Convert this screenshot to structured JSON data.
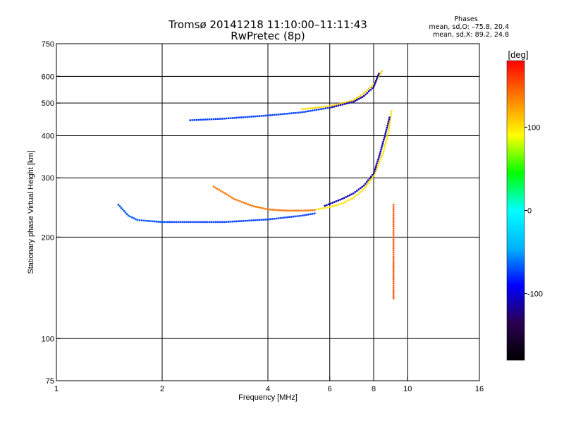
{
  "title_line1": "Tromsø 20141218 11:10:00–11:11:43",
  "title_line2": "RwPretec (8p)",
  "phases": {
    "heading": "Phases",
    "line_o": "mean, sd,O: –75.8, 20.4",
    "line_x": "mean, sd,X:  89.2, 24.8"
  },
  "chart_data": {
    "type": "scatter",
    "title": "Tromsø 20141218 11:10:00–11:11:43",
    "subtitle": "RwPretec (8p)",
    "xlabel": "Frequency [MHz]",
    "ylabel": "Stationary phase Virtual Height [km]",
    "xscale": "log",
    "yscale": "log",
    "xlim": [
      1,
      16
    ],
    "ylim": [
      75,
      750
    ],
    "xticks": [
      1,
      2,
      4,
      6,
      8,
      10,
      16
    ],
    "yticks": [
      75,
      100,
      200,
      300,
      400,
      500,
      600,
      750
    ],
    "xgrid": [
      2,
      4,
      6,
      8,
      10
    ],
    "ygrid": [
      100,
      200,
      300,
      400,
      500,
      600
    ],
    "colorbar": {
      "label": "[deg]",
      "range": [
        -180,
        180
      ],
      "ticks": [
        100,
        0,
        -100
      ],
      "colors": [
        "#000000",
        "#2a0050",
        "#0000ff",
        "#00b4ff",
        "#00ffff",
        "#00ff00",
        "#ffff00",
        "#ff8000",
        "#ff0000"
      ]
    },
    "traces": [
      {
        "x": [
          1.5,
          1.6,
          1.7,
          1.8,
          1.9,
          2.0,
          2.1
        ],
        "y": [
          250,
          232,
          225,
          224,
          223,
          222,
          222
        ],
        "phase": -70
      },
      {
        "x": [
          2.1,
          3.0,
          4.0,
          5.0,
          5.5
        ],
        "y": [
          222,
          222,
          226,
          232,
          236
        ],
        "phase": -75
      },
      {
        "x": [
          2.8,
          3.2,
          3.6,
          4.0,
          4.5,
          5.0,
          5.5
        ],
        "y": [
          283,
          260,
          248,
          242,
          240,
          240,
          241
        ],
        "phase": 140
      },
      {
        "x": [
          5.5,
          6.0,
          6.5,
          7.0,
          7.5,
          8.0,
          8.5,
          8.8,
          9.0
        ],
        "y": [
          242,
          246,
          252,
          262,
          278,
          305,
          355,
          410,
          480
        ],
        "phase": 100
      },
      {
        "x": [
          5.8,
          6.5,
          7.0,
          7.5,
          8.0,
          8.3,
          8.6,
          8.9
        ],
        "y": [
          248,
          260,
          270,
          285,
          310,
          350,
          400,
          460
        ],
        "phase": -110
      },
      {
        "x": [
          2.4,
          3.0,
          4.0,
          5.0,
          5.5,
          6.0
        ],
        "y": [
          445,
          450,
          460,
          470,
          478,
          485
        ],
        "phase": -75
      },
      {
        "x": [
          5.0,
          6.0,
          7.0,
          7.5,
          8.0,
          8.5
        ],
        "y": [
          480,
          490,
          510,
          535,
          570,
          630
        ],
        "phase": 105
      },
      {
        "x": [
          6.0,
          7.0,
          7.5,
          8.0,
          8.3
        ],
        "y": [
          485,
          505,
          525,
          560,
          620
        ],
        "phase": -110
      },
      {
        "x": [
          9.1,
          9.1,
          9.1,
          9.1,
          9.1
        ],
        "y": [
          250,
          200,
          170,
          150,
          130
        ],
        "phase": 150
      }
    ]
  }
}
